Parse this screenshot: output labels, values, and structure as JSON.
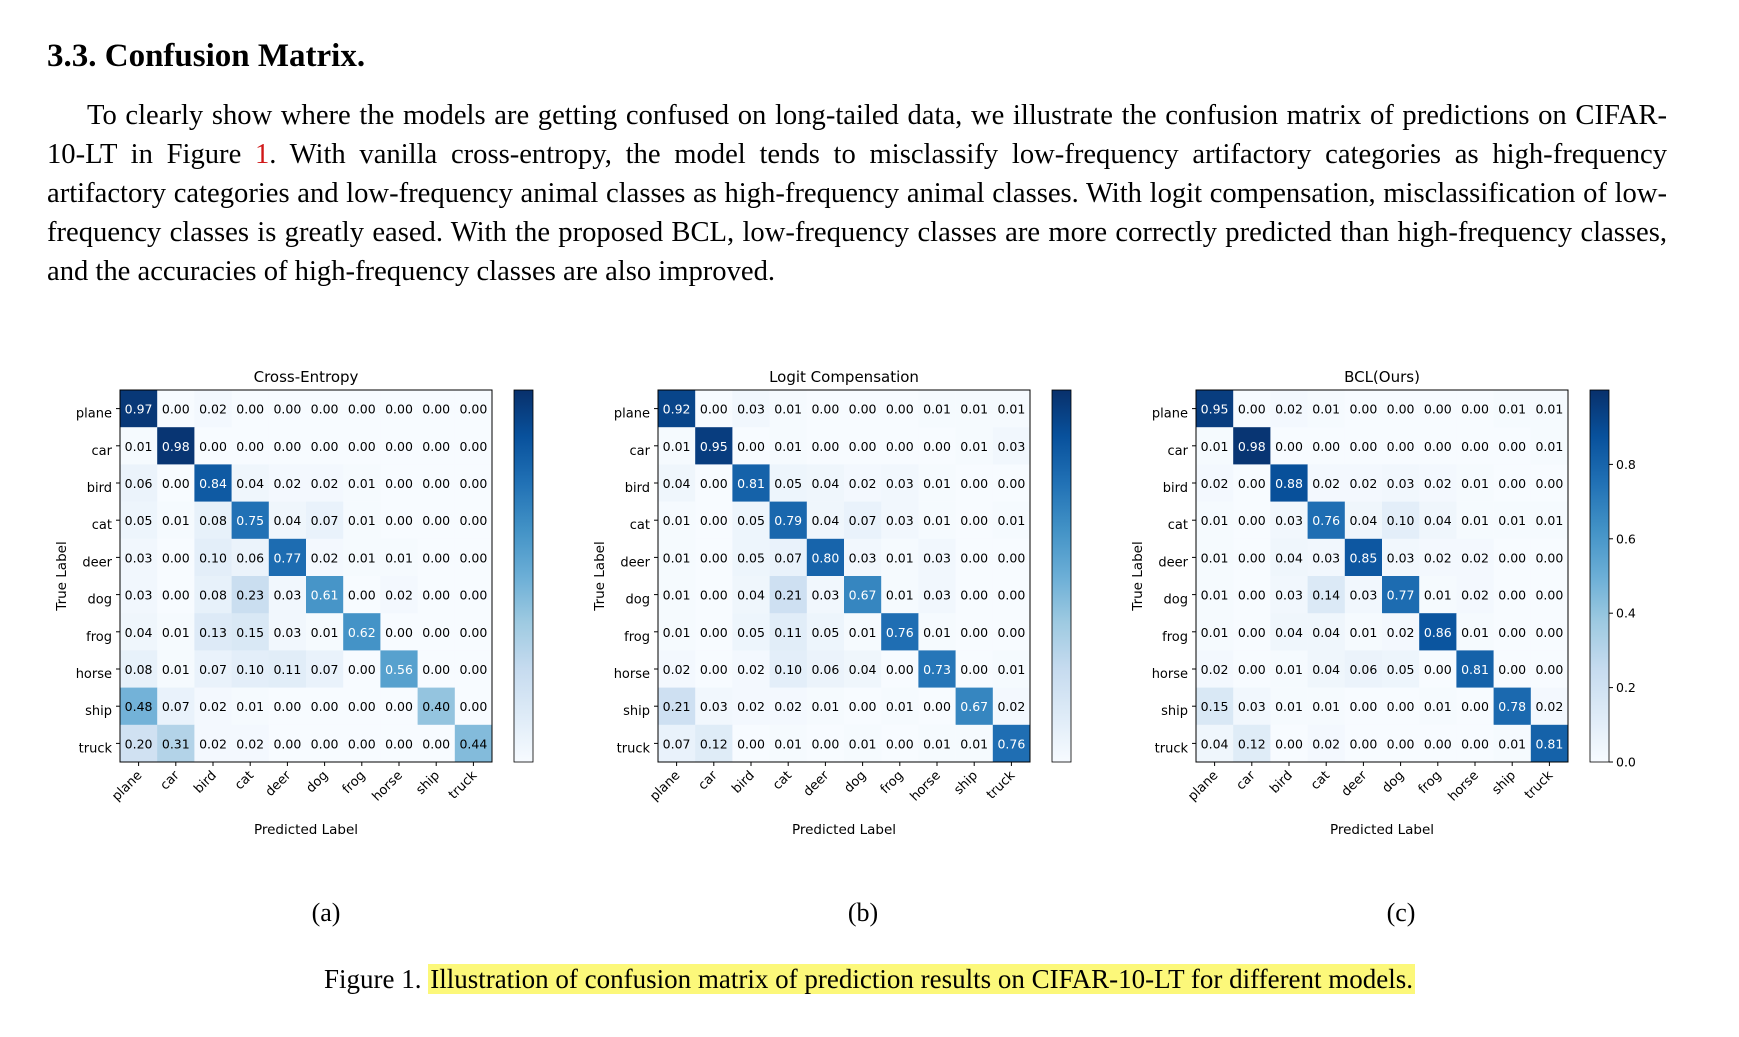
{
  "section": {
    "heading": "3.3. Confusion Matrix.",
    "paragraph_before_ref": "To clearly show where the models are getting confused on long-tailed data, we illustrate the confusion matrix of predictions on CIFAR-10-LT in Figure ",
    "figure_ref": "1",
    "paragraph_after_ref": ". With vanilla cross-entropy, the model tends to misclassify low-frequency artifactory categories as high-frequency artifactory categories and low-frequency animal classes as high-frequency animal classes. With logit compensation, misclassification of low-frequency classes is greatly eased. With the proposed BCL, low-frequency classes are more correctly predicted than high-frequency classes, and the accuracies of high-frequency classes are also improved."
  },
  "figure": {
    "caption_prefix": "Figure 1.",
    "caption_text": "Illustration of confusion matrix of prediction results on CIFAR-10-LT for different models.",
    "sublabels": [
      "(a)",
      "(b)",
      "(c)"
    ],
    "colors": {
      "highlight": "#fcf87a",
      "figure_ref": "#d01818",
      "cmap_low": "#f7fbff",
      "cmap_high": "#08306b"
    }
  },
  "chart_data": [
    {
      "type": "heatmap",
      "title": "Cross-Entropy",
      "xlabel": "Predicted Label",
      "ylabel": "True Label",
      "labels": [
        "plane",
        "car",
        "bird",
        "cat",
        "deer",
        "dog",
        "frog",
        "horse",
        "ship",
        "truck"
      ],
      "colorbar": {
        "range": [
          0,
          1
        ],
        "ticks": [
          "0.0",
          "0.2",
          "0.4",
          "0.6",
          "0.8"
        ],
        "ticks_shown": false
      },
      "matrix": [
        [
          0.97,
          0.0,
          0.02,
          0.0,
          0.0,
          0.0,
          0.0,
          0.0,
          0.0,
          0.0
        ],
        [
          0.01,
          0.98,
          0.0,
          0.0,
          0.0,
          0.0,
          0.0,
          0.0,
          0.0,
          0.0
        ],
        [
          0.06,
          0.0,
          0.84,
          0.04,
          0.02,
          0.02,
          0.01,
          0.0,
          0.0,
          0.0
        ],
        [
          0.05,
          0.01,
          0.08,
          0.75,
          0.04,
          0.07,
          0.01,
          0.0,
          0.0,
          0.0
        ],
        [
          0.03,
          0.0,
          0.1,
          0.06,
          0.77,
          0.02,
          0.01,
          0.01,
          0.0,
          0.0
        ],
        [
          0.03,
          0.0,
          0.08,
          0.23,
          0.03,
          0.61,
          0.0,
          0.02,
          0.0,
          0.0
        ],
        [
          0.04,
          0.01,
          0.13,
          0.15,
          0.03,
          0.01,
          0.62,
          0.0,
          0.0,
          0.0
        ],
        [
          0.08,
          0.01,
          0.07,
          0.1,
          0.11,
          0.07,
          0.0,
          0.56,
          0.0,
          0.0
        ],
        [
          0.48,
          0.07,
          0.02,
          0.01,
          0.0,
          0.0,
          0.0,
          0.0,
          0.4,
          0.0
        ],
        [
          0.2,
          0.31,
          0.02,
          0.02,
          0.0,
          0.0,
          0.0,
          0.0,
          0.0,
          0.44
        ]
      ]
    },
    {
      "type": "heatmap",
      "title": "Logit Compensation",
      "xlabel": "Predicted Label",
      "ylabel": "True Label",
      "labels": [
        "plane",
        "car",
        "bird",
        "cat",
        "deer",
        "dog",
        "frog",
        "horse",
        "ship",
        "truck"
      ],
      "colorbar": {
        "range": [
          0,
          1
        ],
        "ticks": [
          "0.0",
          "0.2",
          "0.4",
          "0.6",
          "0.8"
        ],
        "ticks_shown": false
      },
      "matrix": [
        [
          0.92,
          0.0,
          0.03,
          0.01,
          0.0,
          0.0,
          0.0,
          0.01,
          0.01,
          0.01
        ],
        [
          0.01,
          0.95,
          0.0,
          0.01,
          0.0,
          0.0,
          0.0,
          0.0,
          0.01,
          0.03
        ],
        [
          0.04,
          0.0,
          0.81,
          0.05,
          0.04,
          0.02,
          0.03,
          0.01,
          0.0,
          0.0
        ],
        [
          0.01,
          0.0,
          0.05,
          0.79,
          0.04,
          0.07,
          0.03,
          0.01,
          0.0,
          0.01
        ],
        [
          0.01,
          0.0,
          0.05,
          0.07,
          0.8,
          0.03,
          0.01,
          0.03,
          0.0,
          0.0
        ],
        [
          0.01,
          0.0,
          0.04,
          0.21,
          0.03,
          0.67,
          0.01,
          0.03,
          0.0,
          0.0
        ],
        [
          0.01,
          0.0,
          0.05,
          0.11,
          0.05,
          0.01,
          0.76,
          0.01,
          0.0,
          0.0
        ],
        [
          0.02,
          0.0,
          0.02,
          0.1,
          0.06,
          0.04,
          0.0,
          0.73,
          0.0,
          0.01
        ],
        [
          0.21,
          0.03,
          0.02,
          0.02,
          0.01,
          0.0,
          0.01,
          0.0,
          0.67,
          0.02
        ],
        [
          0.07,
          0.12,
          0.0,
          0.01,
          0.0,
          0.01,
          0.0,
          0.01,
          0.01,
          0.76
        ]
      ]
    },
    {
      "type": "heatmap",
      "title": "BCL(Ours)",
      "xlabel": "Predicted Label",
      "ylabel": "True Label",
      "labels": [
        "plane",
        "car",
        "bird",
        "cat",
        "deer",
        "dog",
        "frog",
        "horse",
        "ship",
        "truck"
      ],
      "colorbar": {
        "range": [
          0,
          1
        ],
        "ticks": [
          "0.0",
          "0.2",
          "0.4",
          "0.6",
          "0.8"
        ],
        "ticks_shown": true
      },
      "matrix": [
        [
          0.95,
          0.0,
          0.02,
          0.01,
          0.0,
          0.0,
          0.0,
          0.0,
          0.01,
          0.01
        ],
        [
          0.01,
          0.98,
          0.0,
          0.0,
          0.0,
          0.0,
          0.0,
          0.0,
          0.0,
          0.01
        ],
        [
          0.02,
          0.0,
          0.88,
          0.02,
          0.02,
          0.03,
          0.02,
          0.01,
          0.0,
          0.0
        ],
        [
          0.01,
          0.0,
          0.03,
          0.76,
          0.04,
          0.1,
          0.04,
          0.01,
          0.01,
          0.01
        ],
        [
          0.01,
          0.0,
          0.04,
          0.03,
          0.85,
          0.03,
          0.02,
          0.02,
          0.0,
          0.0
        ],
        [
          0.01,
          0.0,
          0.03,
          0.14,
          0.03,
          0.77,
          0.01,
          0.02,
          0.0,
          0.0
        ],
        [
          0.01,
          0.0,
          0.04,
          0.04,
          0.01,
          0.02,
          0.86,
          0.01,
          0.0,
          0.0
        ],
        [
          0.02,
          0.0,
          0.01,
          0.04,
          0.06,
          0.05,
          0.0,
          0.81,
          0.0,
          0.0
        ],
        [
          0.15,
          0.03,
          0.01,
          0.01,
          0.0,
          0.0,
          0.01,
          0.0,
          0.78,
          0.02
        ],
        [
          0.04,
          0.12,
          0.0,
          0.02,
          0.0,
          0.0,
          0.0,
          0.0,
          0.01,
          0.81
        ]
      ]
    }
  ]
}
